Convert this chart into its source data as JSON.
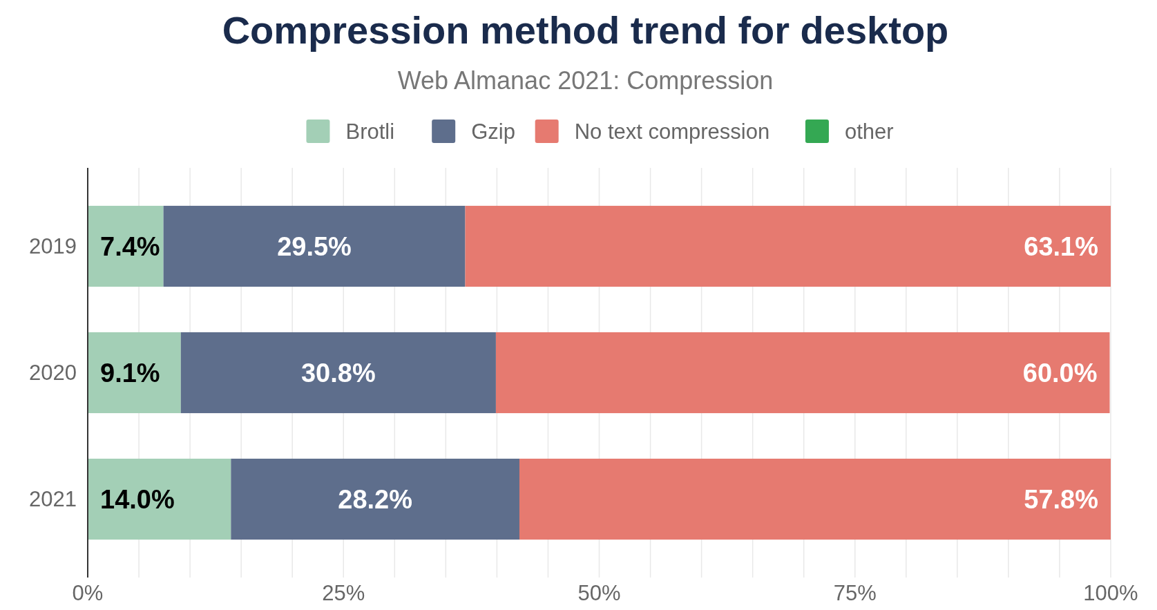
{
  "chart_data": {
    "type": "bar",
    "orientation": "horizontal",
    "stacked": true,
    "title": "Compression method trend for desktop",
    "subtitle": "Web Almanac 2021: Compression",
    "categories": [
      "2019",
      "2020",
      "2021"
    ],
    "series": [
      {
        "name": "Brotli",
        "color": "#a3cfb6",
        "values": [
          7.4,
          9.1,
          14.0
        ],
        "value_labels": [
          "7.4%",
          "9.1%",
          "14.0%"
        ]
      },
      {
        "name": "Gzip",
        "color": "#5e6e8c",
        "values": [
          29.5,
          30.8,
          28.2
        ],
        "value_labels": [
          "29.5%",
          "30.8%",
          "28.2%"
        ]
      },
      {
        "name": "No text compression",
        "color": "#e67a70",
        "values": [
          63.1,
          60.0,
          57.8
        ],
        "value_labels": [
          "63.1%",
          "60.0%",
          "57.8%"
        ]
      },
      {
        "name": "other",
        "color": "#34a853",
        "values": [
          null,
          null,
          null
        ]
      }
    ],
    "xlim": [
      0,
      100
    ],
    "xticks": [
      {
        "value": 0,
        "label": "0%"
      },
      {
        "value": 5,
        "label": null
      },
      {
        "value": 10,
        "label": null
      },
      {
        "value": 15,
        "label": null
      },
      {
        "value": 20,
        "label": null
      },
      {
        "value": 25,
        "label": "25%"
      },
      {
        "value": 30,
        "label": null
      },
      {
        "value": 35,
        "label": null
      },
      {
        "value": 40,
        "label": null
      },
      {
        "value": 45,
        "label": null
      },
      {
        "value": 50,
        "label": "50%"
      },
      {
        "value": 55,
        "label": null
      },
      {
        "value": 60,
        "label": null
      },
      {
        "value": 65,
        "label": null
      },
      {
        "value": 70,
        "label": null
      },
      {
        "value": 75,
        "label": "75%"
      },
      {
        "value": 80,
        "label": null
      },
      {
        "value": 85,
        "label": null
      },
      {
        "value": 90,
        "label": null
      },
      {
        "value": 95,
        "label": null
      },
      {
        "value": 100,
        "label": "100%"
      }
    ],
    "grid": "x",
    "legend": "top"
  }
}
